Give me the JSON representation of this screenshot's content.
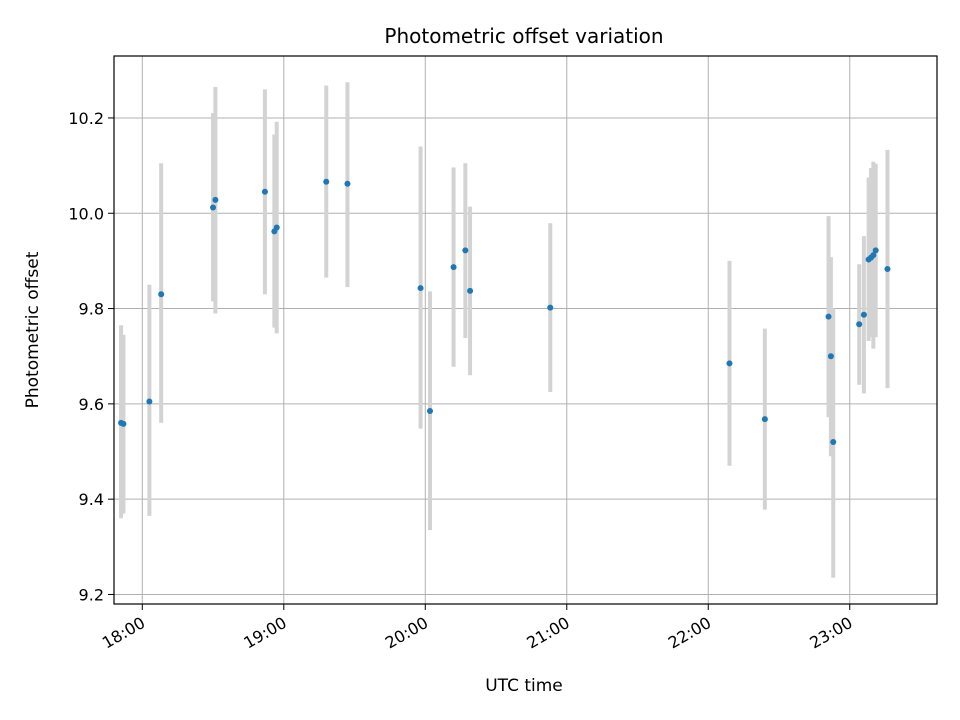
{
  "chart_data": {
    "type": "scatter",
    "title": "Photometric offset variation",
    "xlabel": "UTC time",
    "ylabel": "Photometric offset",
    "xlim": [
      "17:48",
      "23:37"
    ],
    "ylim": [
      9.18,
      10.33
    ],
    "grid": true,
    "x_ticks": [
      "18:00",
      "19:00",
      "20:00",
      "21:00",
      "22:00",
      "23:00"
    ],
    "y_ticks": [
      "9.2",
      "9.4",
      "9.6",
      "9.8",
      "10.0",
      "10.2"
    ],
    "points": [
      {
        "x": "17:51",
        "y": 9.56,
        "low": 9.36,
        "high": 9.765
      },
      {
        "x": "17:52",
        "y": 9.558,
        "low": 9.37,
        "high": 9.745
      },
      {
        "x": "18:03",
        "y": 9.605,
        "low": 9.365,
        "high": 9.85
      },
      {
        "x": "18:08",
        "y": 9.83,
        "low": 9.56,
        "high": 10.105
      },
      {
        "x": "18:30",
        "y": 10.012,
        "low": 9.815,
        "high": 10.21
      },
      {
        "x": "18:31",
        "y": 10.028,
        "low": 9.79,
        "high": 10.265
      },
      {
        "x": "18:52",
        "y": 10.045,
        "low": 9.83,
        "high": 10.26
      },
      {
        "x": "18:56",
        "y": 9.962,
        "low": 9.76,
        "high": 10.165
      },
      {
        "x": "18:57",
        "y": 9.97,
        "low": 9.748,
        "high": 10.192
      },
      {
        "x": "19:18",
        "y": 10.066,
        "low": 9.865,
        "high": 10.268
      },
      {
        "x": "19:27",
        "y": 10.062,
        "low": 9.845,
        "high": 10.275
      },
      {
        "x": "19:58",
        "y": 9.843,
        "low": 9.548,
        "high": 10.14
      },
      {
        "x": "20:02",
        "y": 9.585,
        "low": 9.335,
        "high": 9.836
      },
      {
        "x": "20:12",
        "y": 9.887,
        "low": 9.678,
        "high": 10.096
      },
      {
        "x": "20:17",
        "y": 9.922,
        "low": 9.738,
        "high": 10.105
      },
      {
        "x": "20:19",
        "y": 9.837,
        "low": 9.66,
        "high": 10.014
      },
      {
        "x": "20:53",
        "y": 9.802,
        "low": 9.625,
        "high": 9.979
      },
      {
        "x": "22:09",
        "y": 9.685,
        "low": 9.47,
        "high": 9.9
      },
      {
        "x": "22:24",
        "y": 9.568,
        "low": 9.378,
        "high": 9.758
      },
      {
        "x": "22:51",
        "y": 9.783,
        "low": 9.572,
        "high": 9.994
      },
      {
        "x": "22:52",
        "y": 9.7,
        "low": 9.49,
        "high": 9.908
      },
      {
        "x": "22:53",
        "y": 9.52,
        "low": 9.235,
        "high": 9.8
      },
      {
        "x": "23:04",
        "y": 9.767,
        "low": 9.64,
        "high": 9.893
      },
      {
        "x": "23:06",
        "y": 9.787,
        "low": 9.622,
        "high": 9.952
      },
      {
        "x": "23:08",
        "y": 9.903,
        "low": 9.732,
        "high": 10.075
      },
      {
        "x": "23:09",
        "y": 9.907,
        "low": 9.74,
        "high": 10.095
      },
      {
        "x": "23:10",
        "y": 9.912,
        "low": 9.716,
        "high": 10.108
      },
      {
        "x": "23:11",
        "y": 9.922,
        "low": 9.74,
        "high": 10.104
      },
      {
        "x": "23:16",
        "y": 9.883,
        "low": 9.633,
        "high": 10.133
      }
    ],
    "colors": {
      "point": "#1f77b4",
      "errorbar": "#d3d3d3",
      "grid": "#b0b0b0",
      "axis": "#000000"
    }
  }
}
